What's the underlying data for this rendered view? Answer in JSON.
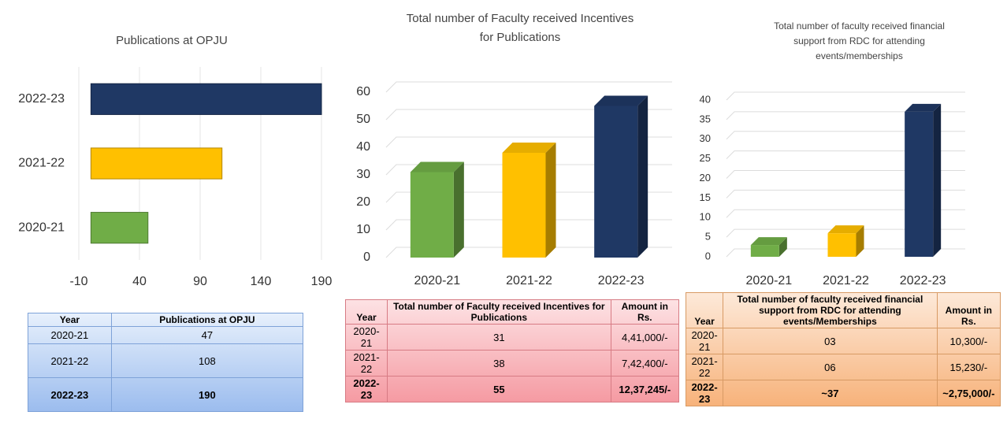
{
  "chart_data": [
    {
      "type": "barh",
      "title": "Publications at OPJU",
      "categories": [
        "2022-23",
        "2021-22",
        "2020-21"
      ],
      "values": [
        190,
        108,
        47
      ],
      "colors": [
        "#1f3864",
        "#ffc000",
        "#70ad47"
      ],
      "xlim": [
        -10,
        190
      ],
      "xticks": [
        -10,
        40,
        90,
        140,
        190
      ],
      "grid": true
    },
    {
      "type": "bar3d",
      "title": "Total number of Faculty received Incentives for Publications",
      "categories": [
        "2020-21",
        "2021-22",
        "2022-23"
      ],
      "values": [
        31,
        38,
        55
      ],
      "colors": [
        "#70ad47",
        "#ffc000",
        "#1f3864"
      ],
      "ylim": [
        0,
        60
      ],
      "yticks": [
        0,
        10,
        20,
        30,
        40,
        50,
        60
      ],
      "grid": true
    },
    {
      "type": "bar3d",
      "title": "Total number of faculty received financial support from RDC for attending events/memberships",
      "categories": [
        "2020-21",
        "2021-22",
        "2022-23"
      ],
      "values": [
        3,
        6,
        37
      ],
      "colors": [
        "#70ad47",
        "#ffc000",
        "#1f3864"
      ],
      "ylim": [
        0,
        40
      ],
      "yticks": [
        0,
        5,
        10,
        15,
        20,
        25,
        30,
        35,
        40
      ],
      "grid": true
    }
  ],
  "tables": [
    {
      "header": [
        "Year",
        "Publications at OPJU"
      ],
      "rows": [
        [
          "2020-21",
          "47"
        ],
        [
          "2021-22",
          "108"
        ],
        [
          "2022-23",
          "190"
        ]
      ]
    },
    {
      "header": [
        "Year",
        "Total number of Faculty received Incentives for Publications",
        "Amount in Rs."
      ],
      "rows": [
        [
          "2020-21",
          "31",
          "4,41,000/-"
        ],
        [
          "2021-22",
          "38",
          "7,42,400/-"
        ],
        [
          "2022-23",
          "55",
          "12,37,245/-"
        ]
      ]
    },
    {
      "header": [
        "Year",
        "Total number of faculty received financial support from RDC for attending events/Memberships",
        "Amount in Rs."
      ],
      "rows": [
        [
          "2020-21",
          "03",
          "10,300/-"
        ],
        [
          "2021-22",
          "06",
          "15,230/-"
        ],
        [
          "2022-23",
          "~37",
          "~2,75,000/-"
        ]
      ]
    }
  ]
}
